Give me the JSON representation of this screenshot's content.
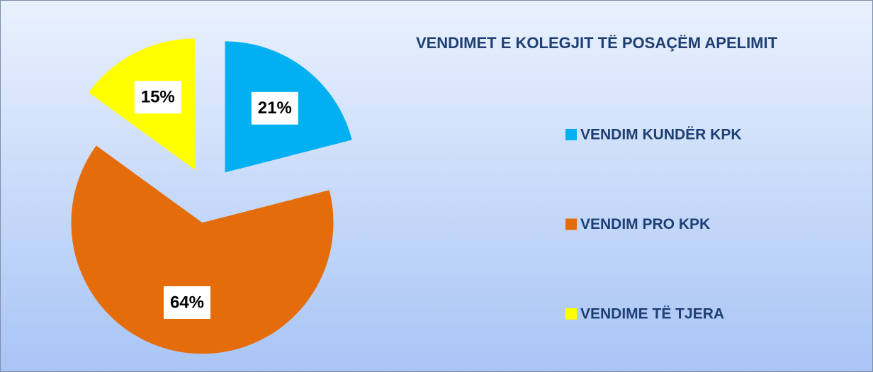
{
  "chart_data": {
    "type": "pie",
    "title": "VENDIMET E KOLEGJIT TË POSAÇËM APELIMIT",
    "categories": [
      "VENDIM KUNDËR KPK",
      "VENDIM PRO KPK",
      "VENDIME TË TJERA"
    ],
    "values": [
      21,
      64,
      15
    ],
    "value_labels": [
      "21%",
      "64%",
      "15%"
    ],
    "colors": [
      "#00b0f0",
      "#e46c0a",
      "#ffff00"
    ],
    "legend": "right"
  }
}
